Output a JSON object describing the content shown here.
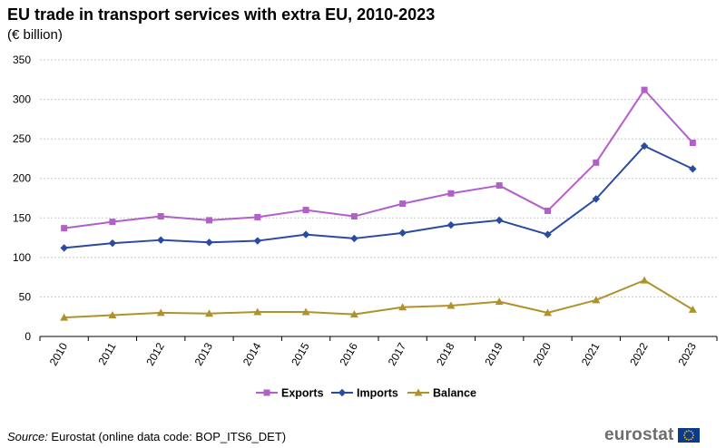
{
  "header": {
    "title": "EU trade in transport services with extra EU, 2010-2023",
    "subtitle": "(€ billion)"
  },
  "footer": {
    "source_label": "Source:",
    "source_text": " Eurostat (online data code: BOP_ITS6_DET)",
    "logo_text": "eurostat"
  },
  "colors": {
    "exports": "#b35fc8",
    "imports": "#2b4ba0",
    "balance": "#b0922a",
    "grid": "#c8c8c8"
  },
  "chart_data": {
    "type": "line",
    "title": "EU trade in transport services with extra EU, 2010-2023",
    "subtitle": "(€ billion)",
    "xlabel": "",
    "ylabel": "",
    "ylim": [
      0,
      350
    ],
    "yticks": [
      0,
      50,
      100,
      150,
      200,
      250,
      300,
      350
    ],
    "grid": true,
    "legend_position": "bottom",
    "x": [
      "2010",
      "2011",
      "2012",
      "2013",
      "2014",
      "2015",
      "2016",
      "2017",
      "2018",
      "2019",
      "2020",
      "2021",
      "2022",
      "2023"
    ],
    "series": [
      {
        "name": "Exports",
        "marker": "square",
        "values": [
          137,
          145,
          152,
          147,
          151,
          160,
          152,
          168,
          181,
          191,
          159,
          220,
          312,
          245
        ]
      },
      {
        "name": "Imports",
        "marker": "diamond",
        "values": [
          112,
          118,
          122,
          119,
          121,
          129,
          124,
          131,
          141,
          147,
          129,
          174,
          241,
          212
        ]
      },
      {
        "name": "Balance",
        "marker": "triangle",
        "values": [
          24,
          27,
          30,
          29,
          31,
          31,
          28,
          37,
          39,
          44,
          30,
          46,
          71,
          34
        ]
      }
    ]
  }
}
